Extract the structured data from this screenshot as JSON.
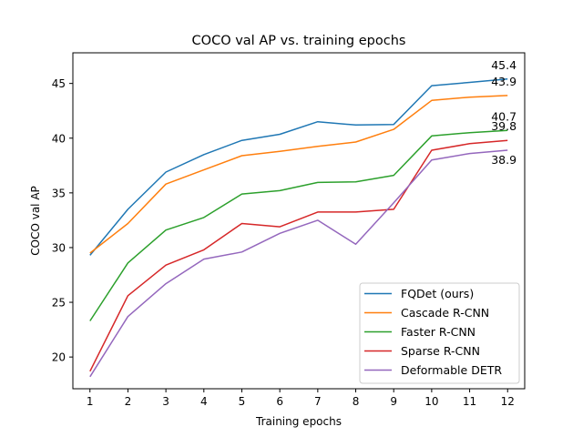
{
  "chart_data": {
    "type": "line",
    "title": "COCO val AP vs. training epochs",
    "xlabel": "Training epochs",
    "ylabel": "COCO val AP",
    "x": [
      1,
      2,
      3,
      4,
      5,
      6,
      7,
      8,
      9,
      10,
      11,
      12
    ],
    "xlim": [
      0.55,
      12.45
    ],
    "ylim": [
      17.1,
      47.8
    ],
    "xticks": [
      1,
      2,
      3,
      4,
      5,
      6,
      7,
      8,
      9,
      10,
      11,
      12
    ],
    "yticks": [
      20,
      25,
      30,
      35,
      40,
      45
    ],
    "grid": false,
    "legend_position": "lower-right",
    "series": [
      {
        "name": "FQDet (ours)",
        "color": "#1f77b4",
        "values": [
          29.3,
          33.5,
          36.9,
          38.5,
          39.8,
          40.35,
          41.5,
          41.2,
          41.25,
          44.8,
          45.1,
          45.4
        ],
        "end_label": "45.4"
      },
      {
        "name": "Cascade R-CNN",
        "color": "#ff7f0e",
        "values": [
          29.5,
          32.2,
          35.8,
          37.1,
          38.4,
          38.8,
          39.25,
          39.65,
          40.8,
          43.45,
          43.75,
          43.9
        ],
        "end_label": "43.9"
      },
      {
        "name": "Faster R-CNN",
        "color": "#2ca02c",
        "values": [
          23.3,
          28.6,
          31.6,
          32.75,
          34.9,
          35.2,
          35.95,
          36.0,
          36.6,
          40.2,
          40.5,
          40.7
        ],
        "end_label": "40.7"
      },
      {
        "name": "Sparse R-CNN",
        "color": "#d62728",
        "values": [
          18.7,
          25.6,
          28.4,
          29.8,
          32.2,
          31.9,
          33.25,
          33.25,
          33.5,
          38.9,
          39.5,
          39.8
        ],
        "end_label": "39.8"
      },
      {
        "name": "Deformable DETR",
        "color": "#9467bd",
        "values": [
          18.2,
          23.7,
          26.7,
          28.95,
          29.6,
          31.3,
          32.5,
          30.3,
          34.1,
          38.0,
          38.6,
          38.9
        ],
        "end_label": "38.9"
      }
    ]
  }
}
